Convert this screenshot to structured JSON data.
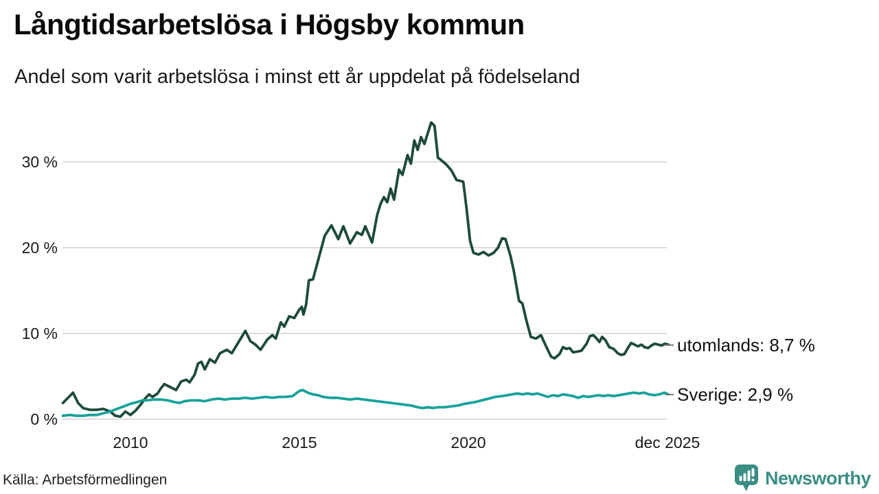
{
  "header": {
    "title": "Långtidsarbetslösa i Högsby kommun",
    "subtitle": "Andel som varit arbetslösa i minst ett år uppdelat på födelseland"
  },
  "footer": {
    "source": "Källa: Arbetsförmedlingen",
    "brand": "Newsworthy"
  },
  "colors": {
    "utomlands_line": "#1d4a3c",
    "sverige_line": "#18a29a",
    "gridline": "#dcdcdc",
    "label_dash": "#7a7a7a",
    "brand_teal": "#3a8e83",
    "text": "#111111"
  },
  "chart_data": {
    "type": "line",
    "title": "Långtidsarbetslösa i Högsby kommun",
    "subtitle": "Andel som varit arbetslösa i minst ett år uppdelat på födelseland",
    "unit": "%",
    "grid": true,
    "legend_position": "right-end-labels",
    "x_axis": {
      "ticks": [
        "2010",
        "2015",
        "2020",
        "dec 2025"
      ],
      "tick_years": [
        2010,
        2015,
        2020,
        2025.92
      ],
      "range": [
        2008,
        2026
      ]
    },
    "y_axis": {
      "ticks": [
        "30 %",
        "20 %",
        "10 %",
        "0 %"
      ],
      "tick_values": [
        30,
        20,
        10,
        0
      ],
      "range": [
        0,
        35.5
      ]
    },
    "series": [
      {
        "name": "utomlands",
        "label": "utomlands: 8,7 %",
        "last_value_text": "8,7 %",
        "last_value": 8.7,
        "color": "#1d4a3c",
        "points": [
          [
            2008.0,
            1.9
          ],
          [
            2008.15,
            2.5
          ],
          [
            2008.3,
            3.1
          ],
          [
            2008.45,
            1.9
          ],
          [
            2008.6,
            1.3
          ],
          [
            2008.8,
            1.1
          ],
          [
            2009.0,
            1.1
          ],
          [
            2009.2,
            1.2
          ],
          [
            2009.4,
            0.9
          ],
          [
            2009.55,
            0.4
          ],
          [
            2009.7,
            0.3
          ],
          [
            2009.85,
            0.9
          ],
          [
            2010.0,
            0.5
          ],
          [
            2010.15,
            1.0
          ],
          [
            2010.3,
            1.7
          ],
          [
            2010.45,
            2.5
          ],
          [
            2010.55,
            2.9
          ],
          [
            2010.65,
            2.6
          ],
          [
            2010.8,
            3.0
          ],
          [
            2010.9,
            3.6
          ],
          [
            2011.0,
            4.1
          ],
          [
            2011.15,
            3.8
          ],
          [
            2011.35,
            3.4
          ],
          [
            2011.5,
            4.4
          ],
          [
            2011.65,
            4.6
          ],
          [
            2011.75,
            4.3
          ],
          [
            2011.9,
            5.2
          ],
          [
            2012.0,
            6.5
          ],
          [
            2012.1,
            6.7
          ],
          [
            2012.2,
            5.8
          ],
          [
            2012.35,
            7.0
          ],
          [
            2012.5,
            6.6
          ],
          [
            2012.65,
            7.7
          ],
          [
            2012.85,
            8.1
          ],
          [
            2013.0,
            7.7
          ],
          [
            2013.2,
            9.0
          ],
          [
            2013.4,
            10.3
          ],
          [
            2013.55,
            9.1
          ],
          [
            2013.7,
            8.7
          ],
          [
            2013.85,
            8.1
          ],
          [
            2014.05,
            9.3
          ],
          [
            2014.2,
            9.8
          ],
          [
            2014.3,
            9.4
          ],
          [
            2014.45,
            11.3
          ],
          [
            2014.55,
            10.8
          ],
          [
            2014.7,
            12.0
          ],
          [
            2014.85,
            11.8
          ],
          [
            2015.0,
            12.8
          ],
          [
            2015.07,
            13.1
          ],
          [
            2015.12,
            12.2
          ],
          [
            2015.2,
            13.4
          ],
          [
            2015.28,
            16.2
          ],
          [
            2015.4,
            16.3
          ],
          [
            2015.6,
            19.2
          ],
          [
            2015.75,
            21.4
          ],
          [
            2015.95,
            22.6
          ],
          [
            2016.15,
            21.0
          ],
          [
            2016.3,
            22.5
          ],
          [
            2016.5,
            20.5
          ],
          [
            2016.7,
            21.8
          ],
          [
            2016.85,
            21.5
          ],
          [
            2016.95,
            22.5
          ],
          [
            2017.15,
            20.6
          ],
          [
            2017.3,
            23.8
          ],
          [
            2017.4,
            25.1
          ],
          [
            2017.5,
            25.9
          ],
          [
            2017.6,
            25.3
          ],
          [
            2017.7,
            26.9
          ],
          [
            2017.8,
            25.6
          ],
          [
            2017.95,
            29.1
          ],
          [
            2018.05,
            28.5
          ],
          [
            2018.2,
            30.8
          ],
          [
            2018.3,
            29.8
          ],
          [
            2018.4,
            32.5
          ],
          [
            2018.5,
            31.4
          ],
          [
            2018.6,
            32.9
          ],
          [
            2018.7,
            32.1
          ],
          [
            2018.9,
            34.6
          ],
          [
            2019.0,
            34.2
          ],
          [
            2019.1,
            30.5
          ],
          [
            2019.2,
            30.2
          ],
          [
            2019.35,
            29.7
          ],
          [
            2019.5,
            29.0
          ],
          [
            2019.65,
            27.9
          ],
          [
            2019.85,
            27.7
          ],
          [
            2019.95,
            24.5
          ],
          [
            2020.05,
            20.8
          ],
          [
            2020.15,
            19.4
          ],
          [
            2020.3,
            19.2
          ],
          [
            2020.45,
            19.5
          ],
          [
            2020.6,
            19.1
          ],
          [
            2020.75,
            19.4
          ],
          [
            2020.88,
            20.0
          ],
          [
            2021.0,
            21.1
          ],
          [
            2021.1,
            21.0
          ],
          [
            2021.25,
            19.0
          ],
          [
            2021.35,
            17.2
          ],
          [
            2021.5,
            13.8
          ],
          [
            2021.6,
            13.5
          ],
          [
            2021.72,
            11.5
          ],
          [
            2021.85,
            9.6
          ],
          [
            2022.0,
            9.4
          ],
          [
            2022.15,
            9.8
          ],
          [
            2022.3,
            8.5
          ],
          [
            2022.45,
            7.3
          ],
          [
            2022.55,
            7.1
          ],
          [
            2022.7,
            7.6
          ],
          [
            2022.8,
            8.4
          ],
          [
            2022.9,
            8.2
          ],
          [
            2023.0,
            8.3
          ],
          [
            2023.1,
            7.8
          ],
          [
            2023.25,
            7.9
          ],
          [
            2023.35,
            8.0
          ],
          [
            2023.5,
            8.8
          ],
          [
            2023.6,
            9.7
          ],
          [
            2023.7,
            9.8
          ],
          [
            2023.8,
            9.4
          ],
          [
            2023.88,
            9.0
          ],
          [
            2023.96,
            9.6
          ],
          [
            2024.06,
            9.2
          ],
          [
            2024.17,
            8.4
          ],
          [
            2024.3,
            8.2
          ],
          [
            2024.42,
            7.7
          ],
          [
            2024.52,
            7.5
          ],
          [
            2024.62,
            7.6
          ],
          [
            2024.72,
            8.3
          ],
          [
            2024.82,
            8.9
          ],
          [
            2024.92,
            8.7
          ],
          [
            2025.02,
            8.5
          ],
          [
            2025.12,
            8.7
          ],
          [
            2025.22,
            8.4
          ],
          [
            2025.32,
            8.3
          ],
          [
            2025.42,
            8.6
          ],
          [
            2025.52,
            8.8
          ],
          [
            2025.62,
            8.7
          ],
          [
            2025.72,
            8.6
          ],
          [
            2025.82,
            8.8
          ],
          [
            2025.92,
            8.7
          ]
        ]
      },
      {
        "name": "Sverige",
        "label": "Sverige: 2,9 %",
        "last_value_text": "2,9 %",
        "last_value": 2.9,
        "color": "#18a29a",
        "points": [
          [
            2008.0,
            0.4
          ],
          [
            2008.2,
            0.5
          ],
          [
            2008.4,
            0.4
          ],
          [
            2008.6,
            0.4
          ],
          [
            2008.8,
            0.5
          ],
          [
            2009.0,
            0.5
          ],
          [
            2009.2,
            0.7
          ],
          [
            2009.4,
            0.9
          ],
          [
            2009.6,
            1.2
          ],
          [
            2009.8,
            1.5
          ],
          [
            2010.0,
            1.8
          ],
          [
            2010.2,
            2.0
          ],
          [
            2010.35,
            2.2
          ],
          [
            2010.5,
            2.2
          ],
          [
            2010.7,
            2.3
          ],
          [
            2010.9,
            2.3
          ],
          [
            2011.1,
            2.2
          ],
          [
            2011.3,
            2.0
          ],
          [
            2011.45,
            1.9
          ],
          [
            2011.6,
            2.1
          ],
          [
            2011.8,
            2.2
          ],
          [
            2012.0,
            2.2
          ],
          [
            2012.2,
            2.1
          ],
          [
            2012.4,
            2.3
          ],
          [
            2012.6,
            2.4
          ],
          [
            2012.8,
            2.3
          ],
          [
            2013.0,
            2.4
          ],
          [
            2013.2,
            2.4
          ],
          [
            2013.4,
            2.5
          ],
          [
            2013.6,
            2.4
          ],
          [
            2013.8,
            2.5
          ],
          [
            2014.0,
            2.6
          ],
          [
            2014.2,
            2.5
          ],
          [
            2014.4,
            2.6
          ],
          [
            2014.6,
            2.6
          ],
          [
            2014.8,
            2.7
          ],
          [
            2015.0,
            3.3
          ],
          [
            2015.1,
            3.4
          ],
          [
            2015.25,
            3.1
          ],
          [
            2015.4,
            2.9
          ],
          [
            2015.55,
            2.8
          ],
          [
            2015.7,
            2.6
          ],
          [
            2015.9,
            2.5
          ],
          [
            2016.1,
            2.5
          ],
          [
            2016.3,
            2.4
          ],
          [
            2016.5,
            2.3
          ],
          [
            2016.7,
            2.4
          ],
          [
            2016.9,
            2.3
          ],
          [
            2017.1,
            2.2
          ],
          [
            2017.3,
            2.1
          ],
          [
            2017.5,
            2.0
          ],
          [
            2017.7,
            1.9
          ],
          [
            2017.9,
            1.8
          ],
          [
            2018.1,
            1.7
          ],
          [
            2018.3,
            1.6
          ],
          [
            2018.5,
            1.4
          ],
          [
            2018.65,
            1.3
          ],
          [
            2018.8,
            1.4
          ],
          [
            2018.95,
            1.3
          ],
          [
            2019.1,
            1.4
          ],
          [
            2019.3,
            1.4
          ],
          [
            2019.5,
            1.5
          ],
          [
            2019.7,
            1.6
          ],
          [
            2019.9,
            1.8
          ],
          [
            2020.05,
            1.9
          ],
          [
            2020.2,
            2.0
          ],
          [
            2020.4,
            2.2
          ],
          [
            2020.6,
            2.4
          ],
          [
            2020.8,
            2.6
          ],
          [
            2021.0,
            2.7
          ],
          [
            2021.15,
            2.8
          ],
          [
            2021.3,
            2.9
          ],
          [
            2021.45,
            3.0
          ],
          [
            2021.6,
            2.9
          ],
          [
            2021.75,
            3.0
          ],
          [
            2021.9,
            2.9
          ],
          [
            2022.05,
            3.0
          ],
          [
            2022.2,
            2.8
          ],
          [
            2022.35,
            2.6
          ],
          [
            2022.5,
            2.8
          ],
          [
            2022.65,
            2.7
          ],
          [
            2022.8,
            2.9
          ],
          [
            2022.95,
            2.8
          ],
          [
            2023.1,
            2.7
          ],
          [
            2023.25,
            2.5
          ],
          [
            2023.4,
            2.7
          ],
          [
            2023.55,
            2.6
          ],
          [
            2023.7,
            2.7
          ],
          [
            2023.85,
            2.8
          ],
          [
            2024.0,
            2.7
          ],
          [
            2024.15,
            2.8
          ],
          [
            2024.3,
            2.7
          ],
          [
            2024.45,
            2.8
          ],
          [
            2024.6,
            2.9
          ],
          [
            2024.75,
            3.0
          ],
          [
            2024.9,
            3.1
          ],
          [
            2025.05,
            3.0
          ],
          [
            2025.2,
            3.1
          ],
          [
            2025.35,
            2.9
          ],
          [
            2025.5,
            2.8
          ],
          [
            2025.65,
            2.9
          ],
          [
            2025.8,
            3.1
          ],
          [
            2025.92,
            2.9
          ]
        ]
      }
    ]
  }
}
